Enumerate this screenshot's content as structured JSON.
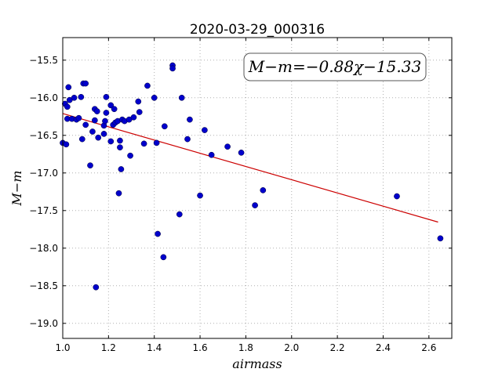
{
  "chart_data": {
    "type": "scatter",
    "title": "2020-03-29_000316",
    "xlabel": "airmass",
    "ylabel": "M−m",
    "xlim": [
      1.0,
      2.7
    ],
    "ylim": [
      -19.2,
      -15.2
    ],
    "xticks": [
      "1.0",
      "1.2",
      "1.4",
      "1.6",
      "1.8",
      "2.0",
      "2.2",
      "2.4",
      "2.6"
    ],
    "yticks": [
      "−15.5",
      "−16.0",
      "−16.5",
      "−17.0",
      "−17.5",
      "−18.0",
      "−18.5",
      "−19.0"
    ],
    "grid": true,
    "annotation": "M−m=−0.88χ−15.33",
    "colors": {
      "points": "#0000cc",
      "fit": "#cc0000"
    },
    "points": [
      [
        1.0,
        -16.6
      ],
      [
        1.01,
        -16.08
      ],
      [
        1.015,
        -16.62
      ],
      [
        1.02,
        -16.28
      ],
      [
        1.02,
        -16.12
      ],
      [
        1.025,
        -15.86
      ],
      [
        1.03,
        -16.03
      ],
      [
        1.04,
        -16.28
      ],
      [
        1.05,
        -16.0
      ],
      [
        1.06,
        -16.29
      ],
      [
        1.07,
        -16.27
      ],
      [
        1.08,
        -15.99
      ],
      [
        1.085,
        -16.55
      ],
      [
        1.09,
        -15.81
      ],
      [
        1.1,
        -15.81
      ],
      [
        1.1,
        -16.36
      ],
      [
        1.12,
        -16.9
      ],
      [
        1.13,
        -16.45
      ],
      [
        1.14,
        -16.15
      ],
      [
        1.14,
        -16.3
      ],
      [
        1.145,
        -18.52
      ],
      [
        1.15,
        -16.18
      ],
      [
        1.155,
        -16.53
      ],
      [
        1.18,
        -16.37
      ],
      [
        1.18,
        -16.48
      ],
      [
        1.185,
        -16.31
      ],
      [
        1.19,
        -15.99
      ],
      [
        1.19,
        -16.2
      ],
      [
        1.21,
        -16.58
      ],
      [
        1.21,
        -16.1
      ],
      [
        1.22,
        -16.36
      ],
      [
        1.225,
        -16.15
      ],
      [
        1.23,
        -16.33
      ],
      [
        1.24,
        -16.31
      ],
      [
        1.245,
        -17.27
      ],
      [
        1.25,
        -16.57
      ],
      [
        1.25,
        -16.66
      ],
      [
        1.255,
        -16.95
      ],
      [
        1.26,
        -16.29
      ],
      [
        1.27,
        -16.31
      ],
      [
        1.29,
        -16.29
      ],
      [
        1.295,
        -16.77
      ],
      [
        1.31,
        -16.26
      ],
      [
        1.33,
        -16.05
      ],
      [
        1.335,
        -16.19
      ],
      [
        1.355,
        -16.61
      ],
      [
        1.37,
        -15.84
      ],
      [
        1.4,
        -16.0
      ],
      [
        1.41,
        -16.6
      ],
      [
        1.415,
        -17.81
      ],
      [
        1.44,
        -18.12
      ],
      [
        1.445,
        -16.38
      ],
      [
        1.48,
        -15.57
      ],
      [
        1.48,
        -15.61
      ],
      [
        1.51,
        -17.55
      ],
      [
        1.52,
        -16.0
      ],
      [
        1.545,
        -16.55
      ],
      [
        1.555,
        -16.29
      ],
      [
        1.6,
        -17.3
      ],
      [
        1.62,
        -16.43
      ],
      [
        1.65,
        -16.76
      ],
      [
        1.72,
        -16.65
      ],
      [
        1.78,
        -16.73
      ],
      [
        1.84,
        -17.43
      ],
      [
        1.875,
        -17.23
      ],
      [
        2.46,
        -17.31
      ],
      [
        2.65,
        -17.87
      ]
    ],
    "fit": {
      "slope": -0.88,
      "intercept": -15.33,
      "x_range": [
        1.0,
        2.64
      ]
    }
  }
}
